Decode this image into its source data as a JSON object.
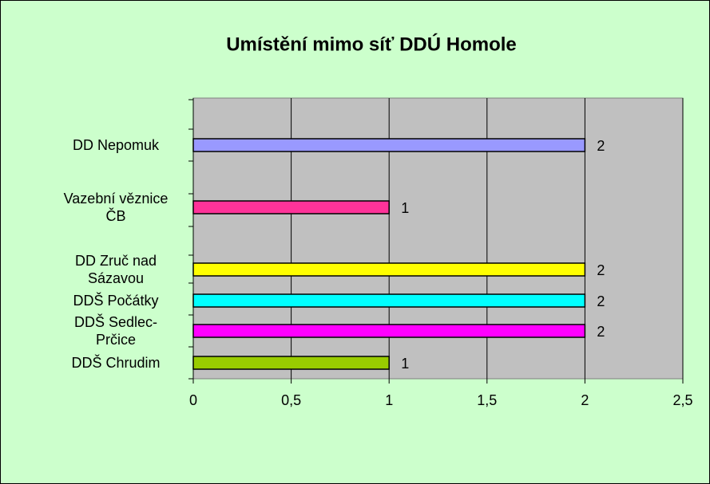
{
  "chart_data": {
    "type": "bar",
    "orientation": "horizontal",
    "title": "Umístění mimo síť DDÚ Homole",
    "categories": [
      "DD Nepomuk",
      "Vazební věznice ČB",
      "DD Zruč nad Sázavou",
      "DDŠ Počátky",
      "DDŠ Sedlec-Prčice",
      "DDŠ Chrudim"
    ],
    "values": [
      2,
      1,
      2,
      2,
      2,
      1
    ],
    "colors": [
      "#9999ff",
      "#ff3399",
      "#ffff00",
      "#00ffff",
      "#ff00ff",
      "#99cc00"
    ],
    "xlim": [
      0,
      2.5
    ],
    "xticks": [
      0,
      {
        "value": 0.5,
        "label": "0,5"
      },
      1,
      {
        "value": 1.5,
        "label": "1,5"
      },
      2,
      {
        "value": 2.5,
        "label": "2,5"
      }
    ],
    "grid": true
  }
}
